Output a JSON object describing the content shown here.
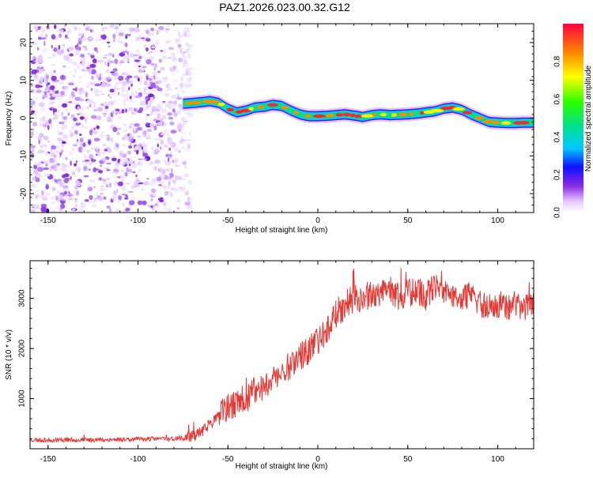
{
  "title": "PAZ1.2026.023.00.32.G12",
  "colors": {
    "line": "#e53935",
    "frame": "#000000",
    "noise": "#8a2be2"
  },
  "chart_data": [
    {
      "id": "spectrogram",
      "type": "heatmap",
      "xlabel": "Height of straight line (km)",
      "ylabel": "Frequency (Hz)",
      "xlim": [
        -160,
        120
      ],
      "ylim": [
        -25,
        25
      ],
      "xticks": [
        -150,
        -100,
        -50,
        0,
        50,
        100
      ],
      "yticks": [
        -20,
        -10,
        0,
        10,
        20
      ],
      "noise_region_xmax": -75,
      "ridge": {
        "x": [
          -75,
          -70,
          -65,
          -60,
          -55,
          -50,
          -45,
          -40,
          -35,
          -30,
          -25,
          -20,
          -15,
          -10,
          -5,
          0,
          5,
          10,
          15,
          20,
          25,
          30,
          35,
          40,
          45,
          50,
          55,
          60,
          65,
          70,
          75,
          80,
          85,
          90,
          95,
          100,
          105,
          110,
          115,
          120
        ],
        "freq": [
          3.8,
          4,
          4.2,
          4.5,
          4,
          2.5,
          1.5,
          2,
          2.8,
          3,
          3.5,
          3.2,
          2,
          1,
          0.5,
          0.5,
          0.6,
          0.8,
          1,
          0.7,
          0.3,
          0.8,
          1,
          0.8,
          0.9,
          1,
          1.2,
          1.5,
          1.8,
          2.5,
          2.8,
          2.2,
          1,
          0,
          -1,
          -1.2,
          -1.3,
          -1.3,
          -1.2,
          -1.2
        ]
      },
      "colorbar": {
        "label": "Normalized spectral amplitude",
        "range": [
          0,
          1
        ],
        "ticks": [
          "0.0",
          "0.2",
          "0.4",
          "0.6",
          "0.8"
        ]
      }
    },
    {
      "id": "snr",
      "type": "line",
      "xlabel": "Height of straight line (km)",
      "ylabel": "SNR (10 * v/v)",
      "xlim": [
        -160,
        120
      ],
      "ylim": [
        0,
        3750
      ],
      "xticks": [
        -150,
        -100,
        -50,
        0,
        50,
        100
      ],
      "yticks": [
        1000,
        2000,
        3000
      ],
      "series": [
        {
          "name": "SNR",
          "x": [
            -160,
            -150,
            -140,
            -130,
            -120,
            -110,
            -100,
            -90,
            -80,
            -75,
            -70,
            -65,
            -60,
            -55,
            -50,
            -45,
            -40,
            -35,
            -30,
            -25,
            -20,
            -15,
            -10,
            -5,
            0,
            5,
            10,
            15,
            20,
            25,
            30,
            35,
            40,
            45,
            50,
            55,
            60,
            65,
            70,
            75,
            80,
            85,
            90,
            95,
            100,
            105,
            110,
            115,
            120
          ],
          "y": [
            180,
            170,
            180,
            175,
            180,
            185,
            190,
            200,
            200,
            210,
            250,
            330,
            500,
            650,
            800,
            900,
            1000,
            1150,
            1250,
            1400,
            1500,
            1700,
            1850,
            1950,
            2150,
            2400,
            2700,
            2850,
            3000,
            3000,
            3100,
            3050,
            3150,
            3050,
            3100,
            3150,
            3050,
            3200,
            3100,
            3050,
            2950,
            3050,
            2900,
            2850,
            2900,
            2850,
            2850,
            2850,
            2850
          ]
        }
      ]
    }
  ]
}
